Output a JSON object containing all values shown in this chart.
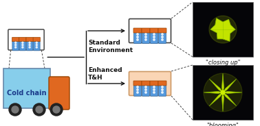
{
  "bg_color": "#ffffff",
  "truck_cargo_color": "#87ceeb",
  "truck_cab_color": "#e06820",
  "truck_text": "Cold chain",
  "truck_text_color": "#1a3a8a",
  "vial_body_color": "#5599dd",
  "vial_cap_color": "#e06820",
  "vial_highlight": "#88bbff",
  "vial_bg_white": "#ffffff",
  "vial_bg_pink": "#fad5b5",
  "box_outline_dark": "#444444",
  "box_outline_pink": "#cc9966",
  "label_standard": "Standard\nEnvironment",
  "label_enhanced": "Enhanced\nT&H",
  "label_closing": "\"closing up\"",
  "label_blooming": "\"blooming\"",
  "arrow_color": "#111111",
  "dashed_color": "#444444",
  "dark_bg": "#050508",
  "flower_color": "#ccee00",
  "flower_glow": "#aacc00",
  "text_fontsize": 6.5,
  "label_fontsize": 6.0
}
